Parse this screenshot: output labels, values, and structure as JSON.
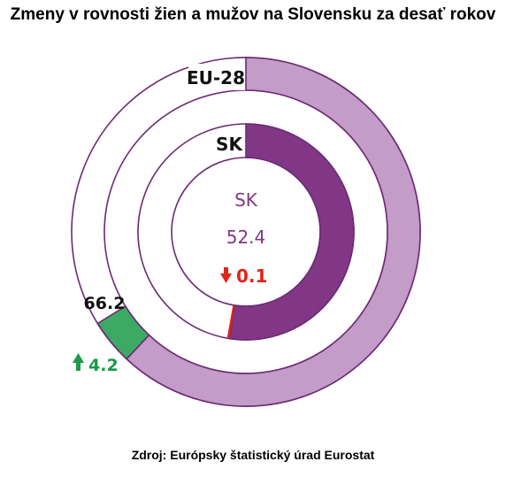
{
  "title": "Zmeny v rovnosti žien a mužov na Slovensku za desať rokov",
  "source": "Zdroj: Európsky štatistický úrad Eurostat",
  "colors": {
    "sk_fill": "#823786",
    "eu_fill": "#c39cc8",
    "ring_outline": "#6d2a74",
    "eu_change": "#3daa63",
    "sk_change": "#e2231a",
    "center_text": "#823786",
    "eu_up_arrow": "#1a9a4a"
  },
  "chart_data": {
    "type": "donut",
    "scale_max": 100,
    "rings": [
      {
        "name": "EU-28",
        "value": 66.2,
        "change": 4.2,
        "change_direction": "up",
        "value_label": "66.2",
        "change_label": "4.2"
      },
      {
        "name": "SK",
        "value": 52.4,
        "change": -0.1,
        "change_direction": "down",
        "value_label": "52.4",
        "change_label": "0.1"
      }
    ],
    "center": {
      "label": "SK",
      "value": "52.4",
      "change": "0.1"
    }
  }
}
